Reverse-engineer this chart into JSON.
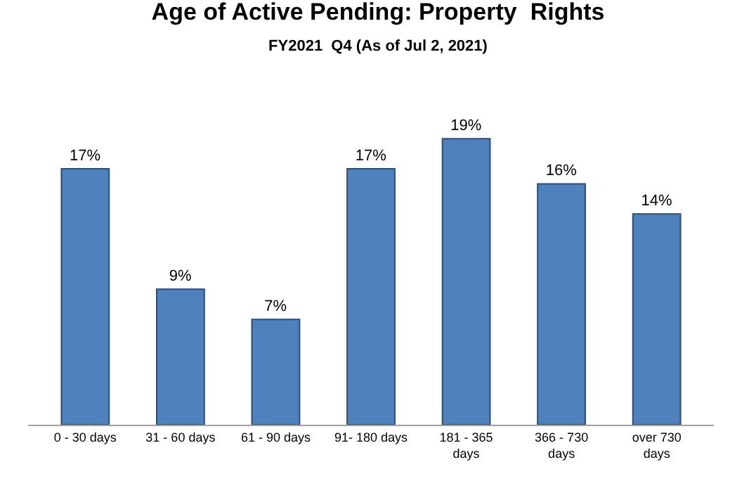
{
  "chart_data": {
    "type": "bar",
    "title": "Age of Active Pending: Property  Rights",
    "subtitle": "FY2021  Q4 (As of Jul 2, 2021)",
    "categories": [
      "0 - 30 days",
      "31 - 60 days",
      "61 - 90 days",
      "91- 180 days",
      "181 - 365 days",
      "366 - 730 days",
      "over 730 days"
    ],
    "series": [
      {
        "color": "#4f81bd",
        "values": [
          17,
          9,
          7,
          17,
          19,
          16,
          14
        ],
        "value_labels": [
          "17%",
          "9%",
          "7%",
          "17%",
          "19%",
          "16%",
          "14%"
        ]
      }
    ],
    "legend": false
  }
}
